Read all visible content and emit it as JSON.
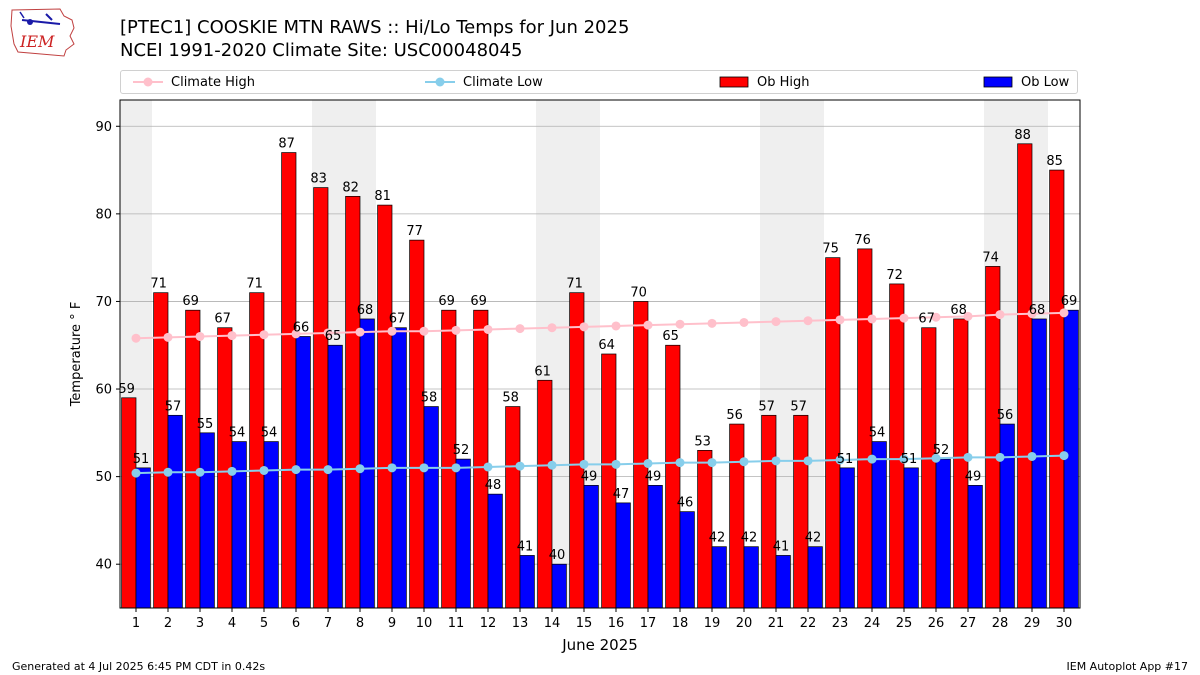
{
  "colors": {
    "climate_high": "#ffc0cb",
    "climate_low": "#87ceeb",
    "ob_high": "#ff0000",
    "ob_low": "#0000ff",
    "weekend_shade": "#efefef",
    "grid": "#b0b0b0"
  },
  "logo_text": "IEM",
  "footer": {
    "left": "Generated at 4 Jul 2025 6:45 PM CDT in 0.42s",
    "right": "IEM Autoplot App #17"
  },
  "chart_data": {
    "type": "bar",
    "title": "[PTEC1] COOSKIE MTN RAWS :: Hi/Lo Temps for Jun 2025",
    "subtitle": "NCEI 1991-2020 Climate Site: USC00048045",
    "xlabel": "June 2025",
    "ylabel": "Temperature ° F",
    "ylim": [
      35,
      93
    ],
    "yticks": [
      40,
      50,
      60,
      70,
      80,
      90
    ],
    "grid": true,
    "legend_position": "top",
    "categories": [
      "1",
      "2",
      "3",
      "4",
      "5",
      "6",
      "7",
      "8",
      "9",
      "10",
      "11",
      "12",
      "13",
      "14",
      "15",
      "16",
      "17",
      "18",
      "19",
      "20",
      "21",
      "22",
      "23",
      "24",
      "25",
      "26",
      "27",
      "28",
      "29",
      "30"
    ],
    "shaded_days": [
      1,
      7,
      8,
      14,
      15,
      21,
      22,
      28,
      29
    ],
    "series": [
      {
        "name": "Climate High",
        "kind": "line",
        "values": [
          65.8,
          65.9,
          66.0,
          66.1,
          66.2,
          66.3,
          66.4,
          66.5,
          66.6,
          66.6,
          66.7,
          66.8,
          66.9,
          67.0,
          67.1,
          67.2,
          67.3,
          67.4,
          67.5,
          67.6,
          67.7,
          67.8,
          67.9,
          68.0,
          68.1,
          68.2,
          68.3,
          68.5,
          68.6,
          68.7
        ]
      },
      {
        "name": "Climate Low",
        "kind": "line",
        "values": [
          50.4,
          50.5,
          50.5,
          50.6,
          50.7,
          50.8,
          50.8,
          50.9,
          51.0,
          51.0,
          51.0,
          51.1,
          51.2,
          51.3,
          51.4,
          51.4,
          51.5,
          51.6,
          51.6,
          51.7,
          51.8,
          51.8,
          51.9,
          52.0,
          52.0,
          52.1,
          52.2,
          52.2,
          52.3,
          52.4
        ]
      },
      {
        "name": "Ob High",
        "kind": "bar",
        "values": [
          59,
          71,
          69,
          67,
          71,
          87,
          83,
          82,
          81,
          77,
          69,
          69,
          58,
          61,
          71,
          64,
          70,
          65,
          53,
          56,
          57,
          57,
          75,
          76,
          72,
          67,
          68,
          74,
          88,
          85
        ]
      },
      {
        "name": "Ob Low",
        "kind": "bar",
        "values": [
          51,
          57,
          55,
          54,
          54,
          66,
          65,
          68,
          67,
          58,
          52,
          48,
          41,
          40,
          49,
          47,
          49,
          46,
          42,
          42,
          41,
          42,
          51,
          54,
          51,
          52,
          49,
          56,
          68,
          69
        ]
      }
    ]
  }
}
